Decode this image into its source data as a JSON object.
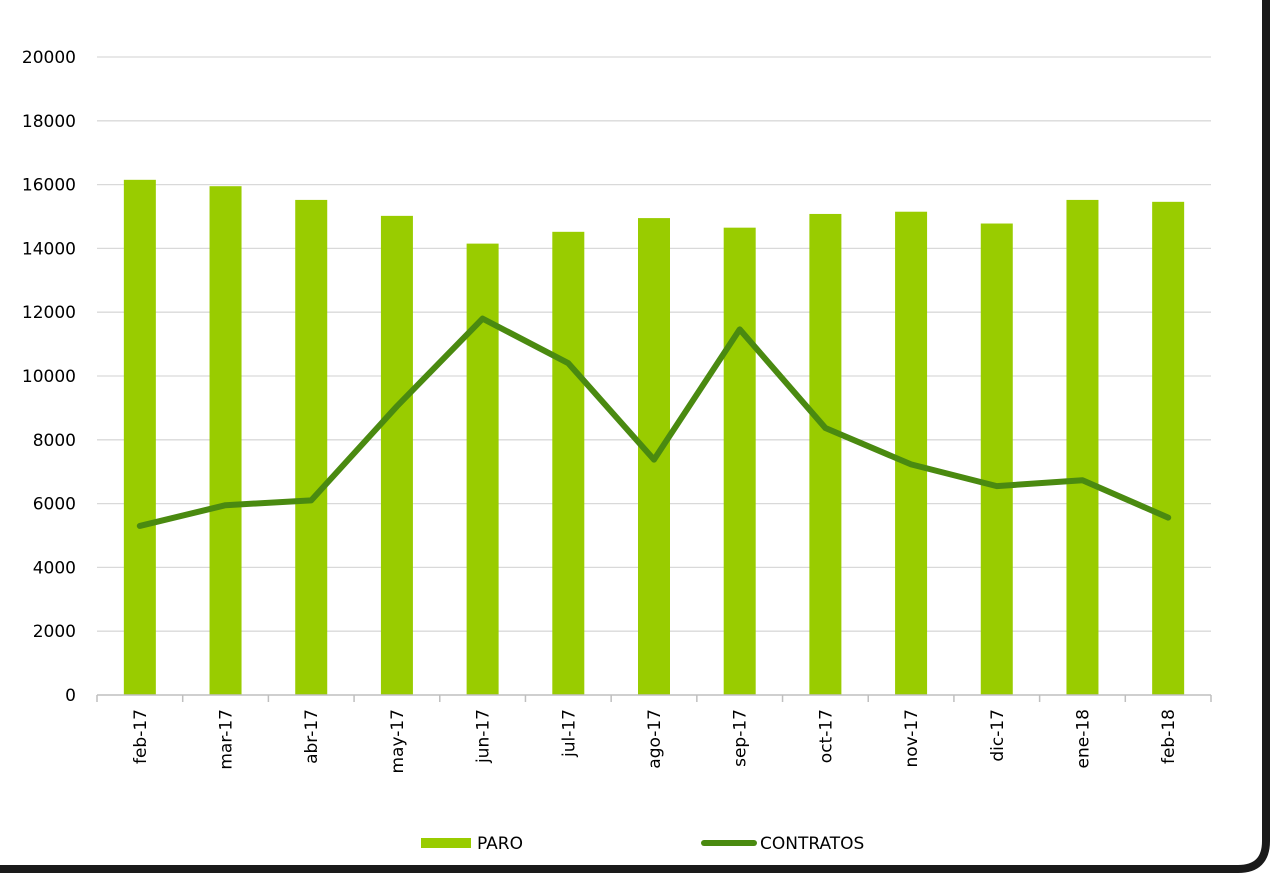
{
  "colors": {
    "paro": "#99cc00",
    "contratos": "#4a8a10",
    "grid": "#d9d9d9",
    "axis": "#bfbfbf",
    "frame": "#1a1a1a"
  },
  "legend": {
    "paro_label": "PARO",
    "contratos_label": "CONTRATOS"
  },
  "chart_data": {
    "type": "bar",
    "title": "",
    "xlabel": "",
    "ylabel": "",
    "categories": [
      "feb-17",
      "mar-17",
      "abr-17",
      "may-17",
      "jun-17",
      "jul-17",
      "ago-17",
      "sep-17",
      "oct-17",
      "nov-17",
      "dic-17",
      "ene-18",
      "feb-18"
    ],
    "ylim": [
      0,
      20000
    ],
    "yticks": [
      "0",
      "2000",
      "4000",
      "6000",
      "8000",
      "10000",
      "12000",
      "14000",
      "16000",
      "18000",
      "20000"
    ],
    "grid": true,
    "legend_position": "bottom",
    "series": [
      {
        "name": "PARO",
        "type": "bar",
        "values": [
          16150,
          15950,
          15520,
          15020,
          14150,
          14520,
          14950,
          14650,
          15080,
          15150,
          14780,
          15520,
          15460
        ]
      },
      {
        "name": "CONTRATOS",
        "type": "line",
        "values": [
          5300,
          5950,
          6100,
          9050,
          11800,
          10400,
          7380,
          11460,
          8370,
          7230,
          6550,
          6730,
          5560
        ]
      }
    ]
  }
}
